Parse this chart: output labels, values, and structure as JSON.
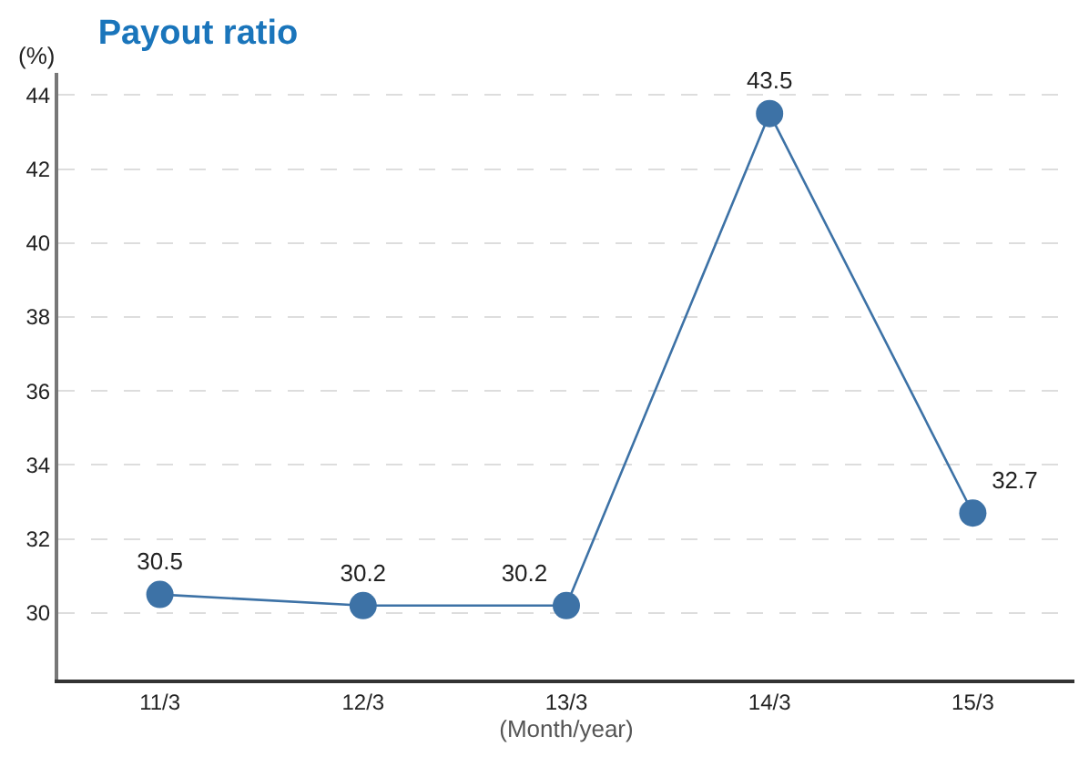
{
  "chart_data": {
    "type": "line",
    "title": "Payout ratio",
    "ylabel": "(%)",
    "xlabel": "(Month/year)",
    "categories": [
      "11/3",
      "12/3",
      "13/3",
      "14/3",
      "15/3"
    ],
    "series": [
      {
        "color": "#3d72a6",
        "values": [
          30.5,
          30.2,
          30.2,
          43.5,
          32.7
        ]
      }
    ],
    "ylim": [
      28.2,
      44.6
    ],
    "yticks": [
      30,
      32,
      34,
      36,
      38,
      40,
      42,
      44
    ],
    "grid": "y",
    "marker": "circle",
    "line_style": "solid",
    "data_labels": true,
    "legend": false
  }
}
